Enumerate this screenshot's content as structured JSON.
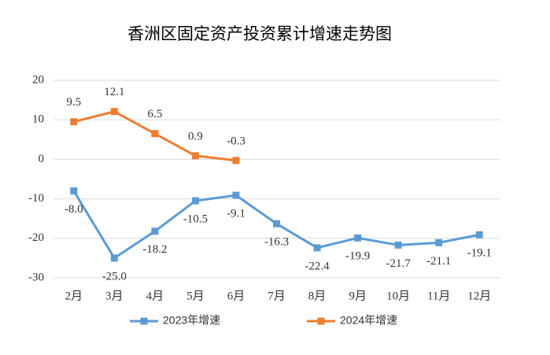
{
  "chart_data": {
    "type": "line",
    "title": "香洲区固定资产投资累计增速走势图",
    "categories": [
      "2月",
      "3月",
      "4月",
      "5月",
      "6月",
      "7月",
      "8月",
      "9月",
      "10月",
      "11月",
      "12月"
    ],
    "series": [
      {
        "name": "2023年增速",
        "color": "#5b9bd5",
        "values": [
          -8.0,
          -25.0,
          -18.2,
          -10.5,
          -9.1,
          -16.3,
          -22.4,
          -19.9,
          -21.7,
          -21.1,
          -19.1
        ],
        "value_labels": [
          "-8.0",
          "-25.0",
          "-18.2",
          "-10.5",
          "-9.1",
          "-16.3",
          "-22.4",
          "-19.9",
          "-21.7",
          "-21.1",
          "-19.1"
        ],
        "label_position": "below"
      },
      {
        "name": "2024年增速",
        "color": "#ed7d31",
        "values": [
          9.5,
          12.1,
          6.5,
          0.9,
          -0.3,
          null,
          null,
          null,
          null,
          null,
          null
        ],
        "value_labels": [
          "9.5",
          "12.1",
          "6.5",
          "0.9",
          "-0.3",
          null,
          null,
          null,
          null,
          null,
          null
        ],
        "label_position": "above"
      }
    ],
    "ylim": [
      -30,
      20
    ],
    "yticks": [
      20,
      10,
      0,
      -10,
      -20,
      -30
    ],
    "grid": true,
    "legend": "bottom"
  }
}
